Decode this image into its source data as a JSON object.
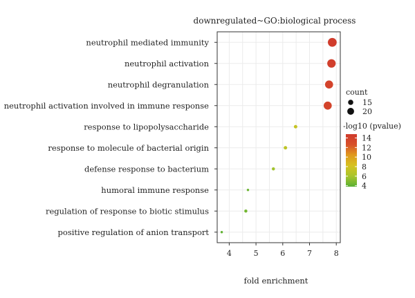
{
  "chart_data": {
    "type": "scatter",
    "title": "downregulated~GO:biological process",
    "xlabel": "fold enrichment",
    "ylabel": "",
    "xlim": [
      3.55,
      8.15
    ],
    "x_ticks": [
      4,
      5,
      6,
      7,
      8
    ],
    "grid": true,
    "legend_position": "right",
    "categories": [
      "neutrophil mediated immunity",
      "neutrophil activation",
      "neutrophil degranulation",
      "neutrophil activation involved in immune response",
      "response to lipopolysaccharide",
      "response to molecule of bacterial origin",
      "defense response to bacterium",
      "humoral immune response",
      "regulation of response to biotic stimulus",
      "positive regulation of anion transport"
    ],
    "points": [
      {
        "term": "neutrophil mediated immunity",
        "fold_enrichment": 7.85,
        "count": 22,
        "neg_log10_pvalue": 14.6
      },
      {
        "term": "neutrophil activation",
        "fold_enrichment": 7.82,
        "count": 21,
        "neg_log10_pvalue": 14.3
      },
      {
        "term": "neutrophil degranulation",
        "fold_enrichment": 7.73,
        "count": 20,
        "neg_log10_pvalue": 13.9
      },
      {
        "term": "neutrophil activation involved in immune response",
        "fold_enrichment": 7.68,
        "count": 20,
        "neg_log10_pvalue": 13.8
      },
      {
        "term": "response to lipopolysaccharide",
        "fold_enrichment": 6.48,
        "count": 8,
        "neg_log10_pvalue": 7.4
      },
      {
        "term": "response to molecule of bacterial origin",
        "fold_enrichment": 6.1,
        "count": 8,
        "neg_log10_pvalue": 7.0
      },
      {
        "term": "defense response to bacterium",
        "fold_enrichment": 5.65,
        "count": 7,
        "neg_log10_pvalue": 5.8
      },
      {
        "term": "humoral immune response",
        "fold_enrichment": 4.7,
        "count": 5,
        "neg_log10_pvalue": 4.3
      },
      {
        "term": "regulation of response to biotic stimulus",
        "fold_enrichment": 4.62,
        "count": 7,
        "neg_log10_pvalue": 4.5
      },
      {
        "term": "positive regulation of anion transport",
        "fold_enrichment": 3.72,
        "count": 5,
        "neg_log10_pvalue": 4.0
      }
    ],
    "size_legend": {
      "title": "count",
      "entries": [
        {
          "label": "15",
          "value": 15
        },
        {
          "label": "20",
          "value": 20
        }
      ]
    },
    "color_legend": {
      "title": "-log10 (pvalue)",
      "ticks": [
        4,
        6,
        8,
        10,
        12,
        14
      ],
      "range": [
        3.8,
        14.8
      ],
      "colors": [
        "#5ab034",
        "#a8c52c",
        "#d6c21f",
        "#e09a1e",
        "#d8502a",
        "#cf3a2c"
      ]
    }
  }
}
